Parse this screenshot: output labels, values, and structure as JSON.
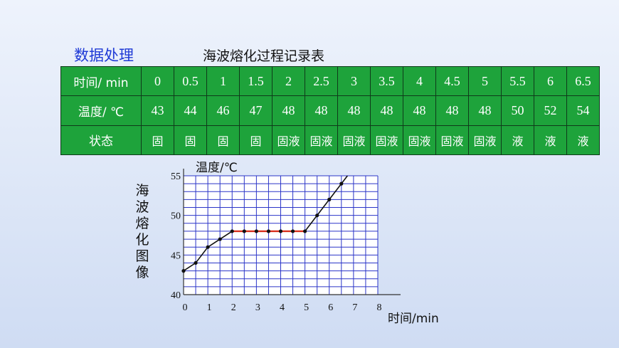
{
  "heading": "数据处理",
  "table": {
    "title": "海波熔化过程记录表",
    "time_label": "时间/ min",
    "temp_label": "温度/ ℃",
    "state_label": "状态",
    "times": [
      "0",
      "0.5",
      "1",
      "1.5",
      "2",
      "2.5",
      "3",
      "3.5",
      "4",
      "4.5",
      "5",
      "5.5",
      "6",
      "6.5"
    ],
    "temps": [
      "43",
      "44",
      "46",
      "47",
      "48",
      "48",
      "48",
      "48",
      "48",
      "48",
      "48",
      "50",
      "52",
      "54"
    ],
    "states": [
      "固",
      "固",
      "固",
      "固",
      "固液",
      "固液",
      "固液",
      "固液",
      "固液",
      "固液",
      "固液",
      "液",
      "液",
      "液"
    ]
  },
  "chart_data": {
    "type": "line",
    "title": "海波熔化图像",
    "xlabel": "时间/min",
    "ylabel": "温度/℃",
    "xlim": [
      0,
      8
    ],
    "ylim": [
      40,
      55
    ],
    "x_ticks": [
      "0",
      "1",
      "2",
      "3",
      "4",
      "5",
      "6",
      "7",
      "8"
    ],
    "y_ticks": [
      "40",
      "45",
      "50",
      "55"
    ],
    "grid": true,
    "colors": {
      "line": "#111111",
      "plateau": "#d8301e",
      "grid": "#2b35c8",
      "point": "#111111"
    },
    "x": [
      0,
      0.5,
      1,
      1.5,
      2,
      2.5,
      3,
      3.5,
      4,
      4.5,
      5,
      5.5,
      6,
      6.5
    ],
    "y": [
      43,
      44,
      46,
      47,
      48,
      48,
      48,
      48,
      48,
      48,
      48,
      50,
      52,
      54
    ],
    "plateau_range": [
      2,
      5
    ]
  }
}
